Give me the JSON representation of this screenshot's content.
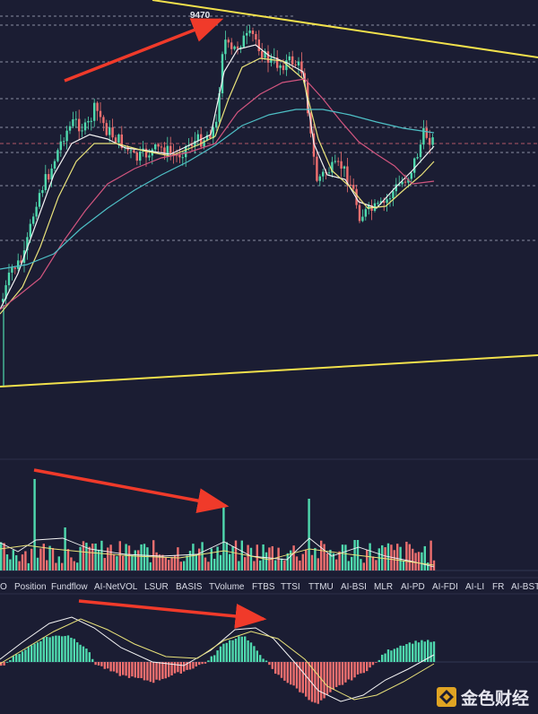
{
  "peak_label": "9470",
  "indicator_tabs": [
    "O",
    "Position",
    "Fundflow",
    "AI-NetVOL",
    "LSUR",
    "BASIS",
    "TVolume",
    "FTBS",
    "TTSI",
    "TTMU",
    "AI-BSI",
    "MLR",
    "AI-PD",
    "AI-FDI",
    "AI-LI",
    "FR",
    "AI-BST"
  ],
  "watermark": {
    "text": "金色财经"
  },
  "colors": {
    "background": "#1b1d33",
    "up": "#4fd9ae",
    "down": "#ef6f6f",
    "trendline": "#f2e14c",
    "annotation_arrow": "#f03a2a",
    "ma_white": "#f4f4f4",
    "ma_yellow": "#e9e27a",
    "ma_pink": "#d2557f",
    "ma_teal": "#4ec0c6"
  },
  "chart_data": [
    {
      "type": "candlestick",
      "panel": "price",
      "title": "",
      "y_scale": "none printed",
      "peak_value": 9470,
      "trendlines": [
        "descending resistance",
        "ascending support"
      ],
      "moving_averages": [
        "white",
        "yellow",
        "pink",
        "teal"
      ],
      "annotation": "red arrow rising toward peak 9470"
    },
    {
      "type": "bar",
      "panel": "volume",
      "annotation": "red arrow falling along lower volume peaks",
      "overlay_lines": [
        "white",
        "yellow"
      ]
    },
    {
      "type": "bar",
      "panel": "macd",
      "annotation": "red arrow toward lower second histogram peak",
      "overlay_lines": [
        "white",
        "yellow"
      ]
    }
  ]
}
